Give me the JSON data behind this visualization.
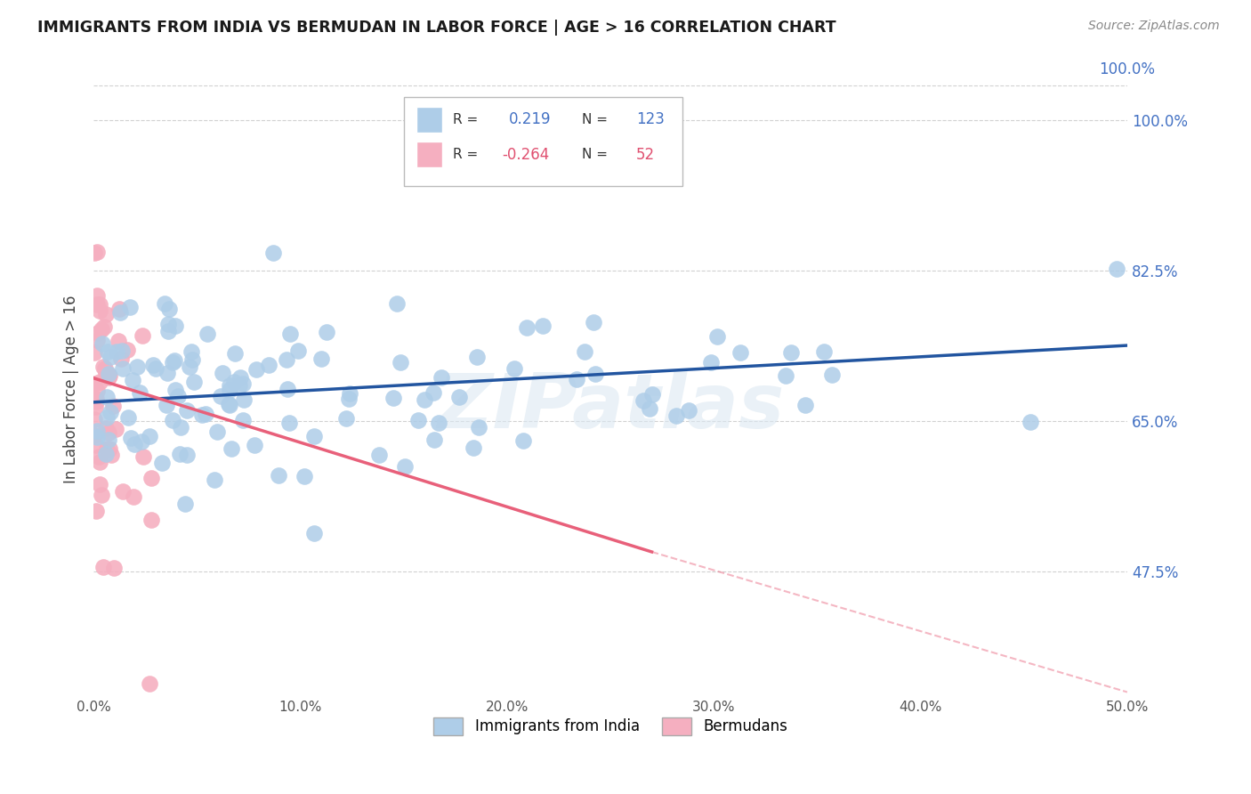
{
  "title": "IMMIGRANTS FROM INDIA VS BERMUDAN IN LABOR FORCE | AGE > 16 CORRELATION CHART",
  "source": "Source: ZipAtlas.com",
  "ylabel": "In Labor Force | Age > 16",
  "x_min": 0.0,
  "x_max": 0.5,
  "y_min": 0.33,
  "y_max": 1.045,
  "y_ticks": [
    0.475,
    0.65,
    0.825,
    1.0
  ],
  "y_tick_labels": [
    "47.5%",
    "65.0%",
    "82.5%",
    "100.0%"
  ],
  "x_ticks": [
    0.0,
    0.1,
    0.2,
    0.3,
    0.4,
    0.5
  ],
  "x_tick_labels": [
    "0.0%",
    "10.0%",
    "20.0%",
    "30.0%",
    "40.0%",
    "50.0%"
  ],
  "india_r": 0.219,
  "india_n": 123,
  "bermuda_r": -0.264,
  "bermuda_n": 52,
  "india_color": "#aecde8",
  "bermuda_color": "#f5afc0",
  "india_line_color": "#2255a0",
  "bermuda_line_color": "#e8607a",
  "watermark": "ZIPatlas",
  "background_color": "#ffffff",
  "grid_color": "#cccccc",
  "india_line_y0": 0.672,
  "india_line_y1": 0.738,
  "bermuda_line_y0": 0.7,
  "bermuda_line_solid_end_x": 0.27,
  "bermuda_line_solid_end_y": 0.498,
  "bermuda_line_dash_end_y": 0.335
}
